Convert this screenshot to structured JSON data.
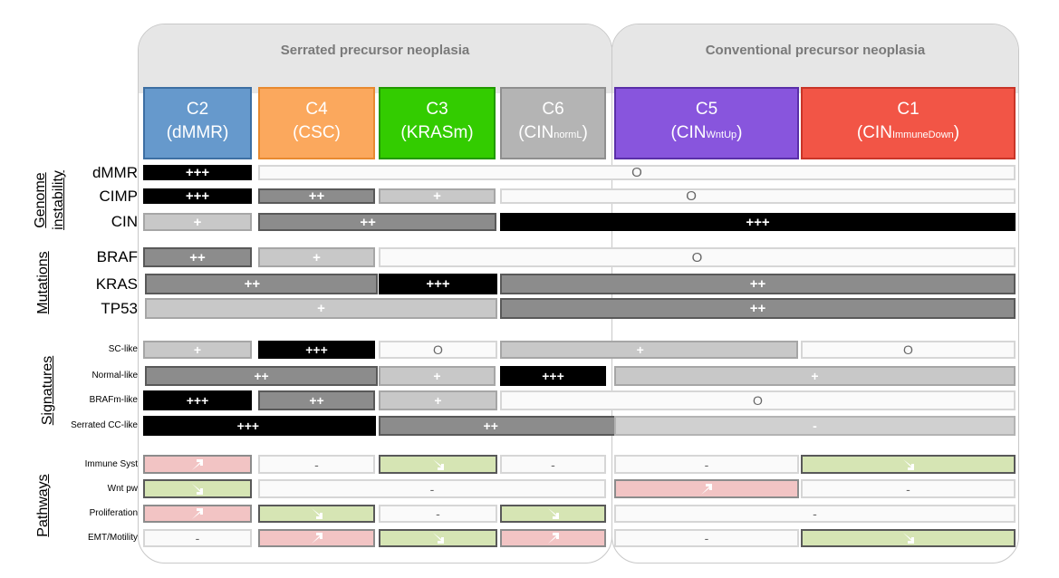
{
  "panels": {
    "serrated": "Serrated precursor neoplasia",
    "conventional": "Conventional precursor neoplasia"
  },
  "clusters": [
    {
      "name": "C2",
      "desc": "(dMMR)",
      "sub": "",
      "tail": "",
      "color": "#6699cc"
    },
    {
      "name": "C4",
      "desc": "(CSC)",
      "sub": "",
      "tail": "",
      "color": "#fba85d"
    },
    {
      "name": "C3",
      "desc": "(KRASm)",
      "sub": "",
      "tail": "",
      "color": "#33cc00"
    },
    {
      "name": "C6",
      "desc": "(CIN",
      "sub": "normL",
      "tail": ")",
      "color": "#b4b4b4"
    },
    {
      "name": "C5",
      "desc": "(CIN",
      "sub": "WntUp",
      "tail": ")",
      "color": "#8855dd"
    },
    {
      "name": "C1",
      "desc": "(CIN",
      "sub": "ImmuneDown",
      "tail": ")",
      "color": "#f25546"
    }
  ],
  "groups": {
    "genome_line1": "Genome",
    "genome_line2": "instability",
    "mutations": "Mutations",
    "signatures": "Signatures",
    "pathways": "Pathways"
  },
  "rows": [
    {
      "label": "dMMR",
      "cells": [
        {
          "level": "3",
          "text": "+++"
        },
        {
          "level": "0",
          "text": "O"
        }
      ]
    },
    {
      "label": "CIMP",
      "cells": [
        {
          "level": "3",
          "text": "+++"
        },
        {
          "level": "2",
          "text": "++"
        },
        {
          "level": "1",
          "text": "+"
        },
        {
          "level": "0",
          "text": "O"
        }
      ]
    },
    {
      "label": "CIN",
      "cells": [
        {
          "level": "1",
          "text": "+"
        },
        {
          "level": "2",
          "text": "++"
        },
        {
          "level": "3",
          "text": "+++"
        }
      ]
    },
    {
      "label": "BRAF",
      "cells": [
        {
          "level": "2",
          "text": "++"
        },
        {
          "level": "1",
          "text": "+"
        },
        {
          "level": "0",
          "text": "O"
        }
      ]
    },
    {
      "label": "KRAS",
      "cells": [
        {
          "level": "2",
          "text": "++"
        },
        {
          "level": "3",
          "text": "+++"
        },
        {
          "level": "2",
          "text": "++"
        }
      ]
    },
    {
      "label": "TP53",
      "cells": [
        {
          "level": "1",
          "text": "+"
        },
        {
          "level": "2",
          "text": "++"
        }
      ]
    },
    {
      "label": "SC-like",
      "cells": [
        {
          "level": "1",
          "text": "+"
        },
        {
          "level": "3",
          "text": "+++"
        },
        {
          "level": "0",
          "text": "O"
        },
        {
          "level": "1",
          "text": "+"
        },
        {
          "level": "0",
          "text": "O"
        }
      ]
    },
    {
      "label": "Normal-like",
      "cells": [
        {
          "level": "2",
          "text": "++"
        },
        {
          "level": "1",
          "text": "+"
        },
        {
          "level": "3",
          "text": "+++"
        },
        {
          "level": "1",
          "text": "+"
        }
      ]
    },
    {
      "label": "BRAFm-like",
      "cells": [
        {
          "level": "3",
          "text": "+++"
        },
        {
          "level": "2",
          "text": "++"
        },
        {
          "level": "1",
          "text": "+"
        },
        {
          "level": "0",
          "text": "O"
        }
      ]
    },
    {
      "label": "Serrated CC-like",
      "cells": [
        {
          "level": "3",
          "text": "+++"
        },
        {
          "level": "2",
          "text": "++"
        },
        {
          "level": "minus",
          "text": "-"
        }
      ]
    },
    {
      "label": "Immune Syst",
      "cells": [
        {
          "level": "up",
          "text": ""
        },
        {
          "level": "flat",
          "text": "-"
        },
        {
          "level": "down",
          "text": ""
        },
        {
          "level": "flat",
          "text": "-"
        },
        {
          "level": "flat",
          "text": "-"
        },
        {
          "level": "down",
          "text": ""
        }
      ]
    },
    {
      "label": "Wnt pw",
      "cells": [
        {
          "level": "down",
          "text": ""
        },
        {
          "level": "flat",
          "text": "-"
        },
        {
          "level": "up",
          "text": ""
        },
        {
          "level": "flat",
          "text": "-"
        }
      ]
    },
    {
      "label": "Proliferation",
      "cells": [
        {
          "level": "up",
          "text": ""
        },
        {
          "level": "down",
          "text": ""
        },
        {
          "level": "flat",
          "text": "-"
        },
        {
          "level": "down",
          "text": ""
        },
        {
          "level": "flat",
          "text": "-"
        }
      ]
    },
    {
      "label": "EMT/Motility",
      "cells": [
        {
          "level": "flat",
          "text": "-"
        },
        {
          "level": "up",
          "text": ""
        },
        {
          "level": "down",
          "text": ""
        },
        {
          "level": "up",
          "text": ""
        },
        {
          "level": "flat",
          "text": "-"
        },
        {
          "level": "down",
          "text": ""
        }
      ]
    }
  ],
  "icons": {
    "increase": "arrow-up-right-icon",
    "decrease": "arrow-down-right-icon"
  }
}
